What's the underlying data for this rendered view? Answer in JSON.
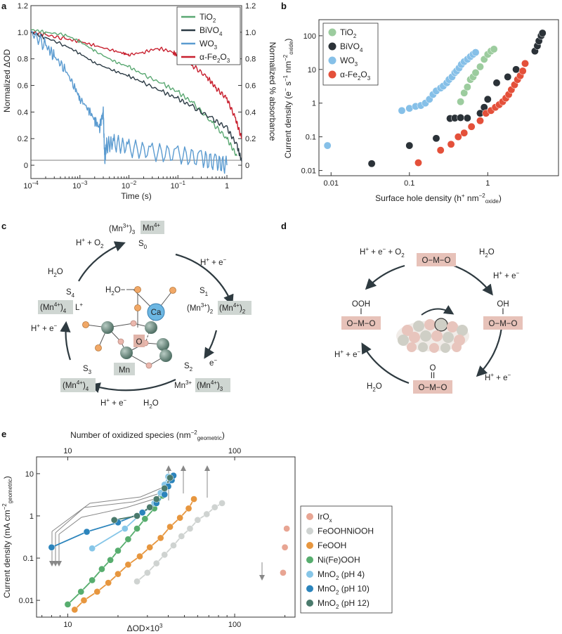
{
  "panels": {
    "a": {
      "label": "a",
      "xlabel": "Time (s)",
      "ylabel_left": "Normalized ΔOD",
      "ylabel_right": "Normalized % absorbance",
      "yticks": [
        "0",
        "0.2",
        "0.4",
        "0.6",
        "0.8",
        "1.0",
        "1.2"
      ],
      "xticks": [
        {
          "base": "10",
          "exp": "−4"
        },
        {
          "base": "10",
          "exp": "−3"
        },
        {
          "base": "10",
          "exp": "−2"
        },
        {
          "base": "10",
          "exp": "−1"
        },
        {
          "base": "1",
          "exp": ""
        }
      ]
    },
    "b": {
      "label": "b",
      "xlabel_main": "Surface hole density (h",
      "xlabel_sup": "+",
      "xlabel_mid": " nm",
      "xlabel_sup2": "−2",
      "xlabel_sub": "oxide",
      "xlabel_end": ")",
      "ylabel_main": "Current density (e",
      "ylabel_sup": "−",
      "ylabel_mid": " s",
      "ylabel_sup2": "−1",
      "ylabel_mid2": " nm",
      "ylabel_sup3": "−2",
      "ylabel_sub": "oxide",
      "ylabel_end": ")",
      "xticks": [
        "0.01",
        "0.1",
        "1"
      ],
      "yticks": [
        "0.01",
        "0.1",
        "1",
        "10",
        "100"
      ]
    },
    "c": {
      "label": "c"
    },
    "d": {
      "label": "d"
    },
    "e": {
      "label": "e",
      "xlabel": "ΔOD×10",
      "xlabel_sup": "3",
      "top_label_main": "Number of oxidized species (nm",
      "top_label_sup": "−2",
      "top_label_sub": "geometric",
      "top_label_end": ")",
      "ylabel_main": "Current density (mA cm",
      "ylabel_sup": "−2",
      "ylabel_sub": "geometric",
      "ylabel_end": ")",
      "xticks": [
        "10",
        "100"
      ],
      "top_ticks": [
        "10",
        "100"
      ],
      "yticks": [
        "0.01",
        "0.1",
        "1",
        "10"
      ]
    }
  },
  "cycle_c": {
    "s0": "S",
    "s0_sub": "0",
    "s1": "S",
    "s1_sub": "1",
    "s2": "S",
    "s2_sub": "2",
    "s3": "S",
    "s3_sub": "3",
    "s4": "S",
    "s4_sub": "4",
    "ox_s0_a": "(Mn",
    "ox_s0_a_sup": "3+",
    "ox_s0_a_end": ")",
    "ox_s0_a_sub": "3",
    "ox_s0_b": "Mn",
    "ox_s0_b_sup": "4+",
    "ox_s1_a": "(Mn",
    "ox_s1_a_sup": "3+",
    "ox_s1_a_end": ")",
    "ox_s1_a_sub": "2",
    "ox_s1_b": "(Mn",
    "ox_s1_b_sup": "4+",
    "ox_s1_b_end": ")",
    "ox_s1_b_sub": "2",
    "ox_s2_a": "Mn",
    "ox_s2_a_sup": "3+",
    "ox_s2_b": "(Mn",
    "ox_s2_b_sup": "4+",
    "ox_s2_b_end": ")",
    "ox_s2_b_sub": "3",
    "ox_s3": "(Mn",
    "ox_s3_sup": "4+",
    "ox_s3_end": ")",
    "ox_s3_sub": "4",
    "ox_s4": "(Mn",
    "ox_s4_sup": "4+",
    "ox_s4_end": ")",
    "ox_s4_sub": "4",
    "ox_s4_l": "L",
    "ox_s4_l_sup": "+",
    "step_01": "H",
    "step_01_sup": "+",
    "step_01_end": " + e",
    "step_01_sup2": "−",
    "step_12": "e",
    "step_12_sup": "−",
    "step_23_a": "H",
    "step_23_a_sup": "+",
    "step_23_a_end": " + e",
    "step_23_a_sup2": "−",
    "step_23_b": "H",
    "step_23_b_sub": "2",
    "step_23_b_end": "O",
    "step_34": "H",
    "step_34_sup": "+",
    "step_34_end": " + e",
    "step_34_sup2": "−",
    "step_40_a": "H",
    "step_40_a_sub": "2",
    "step_40_a_end": "O",
    "step_40_b": "H",
    "step_40_b_sup": "+",
    "step_40_b_mid": " + O",
    "step_40_b_sub": "2",
    "cluster_h2o": "H",
    "cluster_h2o_sub": "2",
    "cluster_h2o_end": "O−",
    "cluster_ca": "Ca",
    "cluster_o": "O",
    "cluster_mn": "Mn"
  },
  "cycle_d": {
    "top": "O−M−O",
    "right_oh": "OH",
    "right_bar": "I",
    "right": "O−M−O",
    "bottom_o": "O",
    "bottom_bar": "II",
    "bottom": "O−M−O",
    "left_ooh": "OOH",
    "left_bar": "I",
    "left": "O−M−O",
    "step_tl": "H",
    "step_tl_sup": "+",
    "step_tl_mid": " + e",
    "step_tl_sup2": "−",
    "step_tl_mid2": " + O",
    "step_tl_sub": "2",
    "step_tr_a": "H",
    "step_tr_a_sub": "2",
    "step_tr_a_end": "O",
    "step_tr_b": "H",
    "step_tr_b_sup": "+",
    "step_tr_b_end": " + e",
    "step_tr_b_sup2": "−",
    "step_br": "H",
    "step_br_sup": "+",
    "step_br_end": " + e",
    "step_br_sup2": "−",
    "step_bl": "H",
    "step_bl_sub": "2",
    "step_bl_end": "O",
    "step_l": "H",
    "step_l_sup": "+",
    "step_l_end": " + e",
    "step_l_sup2": "−"
  },
  "chart_data": [
    {
      "panel": "a",
      "type": "line",
      "xscale": "log",
      "xlim": [
        0.0001,
        2
      ],
      "ylim": [
        -0.1,
        1.2
      ],
      "ylim_right": [
        -0.1,
        1.2
      ],
      "legend_position": "top-right",
      "series": [
        {
          "name": "TiO",
          "name_sub": "2",
          "color": "#5aa872",
          "axis": "left",
          "x": [
            0.0001,
            0.0002,
            0.0005,
            0.001,
            0.002,
            0.005,
            0.01,
            0.02,
            0.05,
            0.1,
            0.2,
            0.5,
            1.0,
            1.6
          ],
          "y": [
            1.02,
            1.0,
            0.98,
            0.93,
            0.86,
            0.78,
            0.74,
            0.68,
            0.61,
            0.55,
            0.47,
            0.32,
            0.2,
            0.07
          ]
        },
        {
          "name": "BiVO",
          "name_sub": "4",
          "color": "#2b3a44",
          "axis": "left",
          "x": [
            0.0001,
            0.0002,
            0.0005,
            0.001,
            0.002,
            0.005,
            0.01,
            0.02,
            0.05,
            0.1,
            0.2,
            0.5,
            1.0,
            1.6,
            2.0
          ],
          "y": [
            1.0,
            0.96,
            0.9,
            0.84,
            0.77,
            0.71,
            0.67,
            0.62,
            0.55,
            0.5,
            0.44,
            0.35,
            0.28,
            0.15,
            0.03
          ]
        },
        {
          "name": "WO",
          "name_sub": "3",
          "color": "#5b9bd0",
          "axis": "left",
          "x": [
            0.0001,
            0.0002,
            0.0003,
            0.0005,
            0.0008,
            0.001,
            0.0015,
            0.002,
            0.0025,
            0.003,
            0.0032,
            0.0035,
            0.005,
            0.01,
            0.03,
            0.1,
            0.3,
            0.6,
            1.0
          ],
          "y": [
            1.0,
            0.9,
            0.82,
            0.72,
            0.58,
            0.5,
            0.42,
            0.34,
            0.28,
            0.4,
            0.05,
            0.15,
            0.17,
            0.13,
            0.1,
            0.08,
            0.05,
            0.02,
            0.0
          ]
        },
        {
          "name": "α-Fe",
          "name_sub": "2",
          "name_end": "O",
          "name_sub2": "3",
          "color": "#c8202f",
          "axis": "right",
          "x": [
            0.0001,
            0.0002,
            0.0005,
            0.001,
            0.002,
            0.005,
            0.008,
            0.01,
            0.02,
            0.04,
            0.08,
            0.1,
            0.2,
            0.4,
            0.6,
            1.0,
            1.5,
            2.0
          ],
          "y": [
            1.0,
            0.98,
            0.95,
            0.93,
            0.9,
            0.86,
            0.84,
            0.83,
            0.85,
            0.88,
            0.85,
            0.82,
            0.75,
            0.66,
            0.58,
            0.5,
            0.35,
            0.2
          ]
        }
      ]
    },
    {
      "panel": "b",
      "type": "scatter",
      "xscale": "log",
      "yscale": "log",
      "xlim": [
        0.007,
        8
      ],
      "ylim": [
        0.007,
        300
      ],
      "legend_position": "top-left",
      "series": [
        {
          "name": "TiO",
          "name_sub": "2",
          "color": "#9ccc9e",
          "x": [
            0.45,
            0.5,
            0.55,
            0.6,
            0.65,
            0.7,
            0.8,
            0.9,
            1.0,
            1.1,
            1.2
          ],
          "y": [
            1.1,
            2.0,
            3.0,
            5.0,
            6.0,
            8.0,
            12.0,
            20.0,
            28.0,
            35.0,
            40.0
          ]
        },
        {
          "name": "BiVO",
          "name_sub": "4",
          "color": "#2b3238",
          "x": [
            0.033,
            0.1,
            0.22,
            0.33,
            0.38,
            0.45,
            0.55,
            0.8,
            0.9,
            1.0,
            1.3,
            1.8,
            2.3,
            3.0,
            4.0,
            4.3,
            4.5,
            4.8,
            5.0
          ],
          "y": [
            0.016,
            0.055,
            0.09,
            0.35,
            0.36,
            0.37,
            0.36,
            0.5,
            0.75,
            1.3,
            4.0,
            6.0,
            10.0,
            15.0,
            35.0,
            50.0,
            70.0,
            100.0,
            120.0
          ]
        },
        {
          "name": "WO",
          "name_sub": "3",
          "color": "#86c0e8",
          "x": [
            0.009,
            0.08,
            0.1,
            0.12,
            0.14,
            0.16,
            0.18,
            0.2,
            0.22,
            0.25,
            0.27,
            0.3,
            0.32,
            0.35,
            0.38,
            0.4,
            0.43,
            0.46,
            0.5,
            0.55,
            0.6,
            0.65,
            0.7
          ],
          "y": [
            0.055,
            0.6,
            0.7,
            0.8,
            0.85,
            1.0,
            1.3,
            1.8,
            2.3,
            2.8,
            3.2,
            4.0,
            5.0,
            6.0,
            8.0,
            9.0,
            11.0,
            14.0,
            17.0,
            20.0,
            24.0,
            28.0,
            32.0
          ]
        },
        {
          "name": "α-Fe",
          "name_sub": "2",
          "name_end": "O",
          "name_sub2": "3",
          "color": "#e4503a",
          "x": [
            0.13,
            0.25,
            0.34,
            0.42,
            0.5,
            0.62,
            0.8,
            0.95,
            1.1,
            1.25,
            1.4,
            1.55,
            1.7,
            1.85,
            2.0,
            2.2,
            2.4,
            2.6,
            2.8,
            3.0
          ],
          "y": [
            0.017,
            0.04,
            0.06,
            0.1,
            0.13,
            0.2,
            0.3,
            0.5,
            0.6,
            0.75,
            0.9,
            1.1,
            1.4,
            1.8,
            2.5,
            3.5,
            5.0,
            6.5,
            9.0,
            15.0
          ]
        }
      ]
    },
    {
      "panel": "e",
      "type": "scatter",
      "xscale": "log",
      "yscale": "log",
      "xlim": [
        6.5,
        230
      ],
      "ylim": [
        0.004,
        25
      ],
      "legend_position": "right",
      "series": [
        {
          "name": "IrO",
          "name_sub": "x",
          "color": "#e8a593",
          "x": [
            195,
            200,
            205
          ],
          "y": [
            0.045,
            0.18,
            0.5
          ]
        },
        {
          "name": "FeOOHNiOOH",
          "color": "#cfd3d1",
          "x": [
            26,
            30,
            34,
            38,
            43,
            48,
            54,
            60,
            68,
            76,
            84
          ],
          "y": [
            0.028,
            0.045,
            0.075,
            0.12,
            0.2,
            0.33,
            0.5,
            0.8,
            1.1,
            1.6,
            2.0
          ]
        },
        {
          "name": "FeOOH",
          "color": "#e7963e",
          "x": [
            11,
            12.5,
            15,
            17.5,
            20,
            23,
            27,
            31,
            36,
            41,
            47,
            53,
            57
          ],
          "y": [
            0.006,
            0.01,
            0.016,
            0.026,
            0.042,
            0.07,
            0.11,
            0.18,
            0.3,
            0.55,
            0.9,
            1.5,
            2.5
          ]
        },
        {
          "name": "Ni(Fe)OOH",
          "color": "#57ad6e",
          "x": [
            10,
            12,
            14,
            16,
            18,
            20,
            23,
            26,
            29,
            33,
            37,
            40
          ],
          "y": [
            0.008,
            0.016,
            0.03,
            0.055,
            0.09,
            0.15,
            0.28,
            0.5,
            0.85,
            1.5,
            3.0,
            5.0
          ]
        },
        {
          "name": "MnO",
          "name_sub": "2",
          "name_end": " (pH 4)",
          "color": "#86c6e8",
          "x": [
            14,
            22,
            28,
            33,
            36,
            38,
            40
          ],
          "y": [
            0.17,
            0.5,
            1.2,
            2.0,
            3.5,
            5.5,
            8.5
          ]
        },
        {
          "name": "MnO",
          "name_sub": "2",
          "name_end": " (pH 10)",
          "color": "#2b84bc",
          "x": [
            8,
            13,
            20,
            28,
            34,
            38,
            40,
            42,
            43
          ],
          "y": [
            0.18,
            0.42,
            0.7,
            1.2,
            2.0,
            3.2,
            5.0,
            7.0,
            9.0
          ]
        },
        {
          "name": "MnO",
          "name_sub": "2",
          "name_end": " (pH 12)",
          "color": "#4a7a6c",
          "x": [
            19,
            26,
            31,
            34,
            38,
            41
          ],
          "y": [
            0.8,
            1.0,
            1.6,
            2.5,
            4.5,
            8.0
          ]
        }
      ]
    }
  ]
}
